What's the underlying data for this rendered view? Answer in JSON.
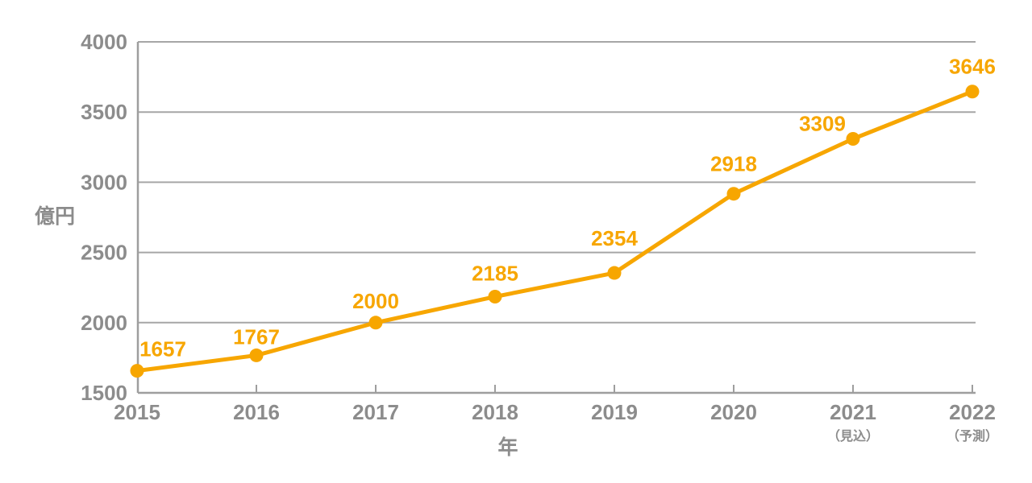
{
  "chart_data": {
    "type": "line",
    "title": "",
    "xlabel": "年",
    "ylabel": "億円",
    "categories": [
      "2015",
      "2016",
      "2017",
      "2018",
      "2019",
      "2020",
      "2021",
      "2022"
    ],
    "category_notes": [
      "",
      "",
      "",
      "",
      "",
      "",
      "（見込）",
      "（予測）"
    ],
    "values": [
      1657,
      1767,
      2000,
      2185,
      2354,
      2918,
      3309,
      3646
    ],
    "value_labels": [
      "1657",
      "1767",
      "2000",
      "2185",
      "2354",
      "2918",
      "3309",
      "3646"
    ],
    "yticks": [
      1500,
      2000,
      2500,
      3000,
      3500,
      4000
    ],
    "ylim": [
      1500,
      4000
    ],
    "grid": true,
    "legend": "none",
    "colors": {
      "line": "#F7A600",
      "marker": "#F7A600",
      "value_label": "#F7A600",
      "grid": "#A6A6A6",
      "axis": "#9E9E9E",
      "tick_label": "#8C8C8C",
      "axis_title": "#8C8C8C",
      "background": "#FFFFFF"
    }
  }
}
